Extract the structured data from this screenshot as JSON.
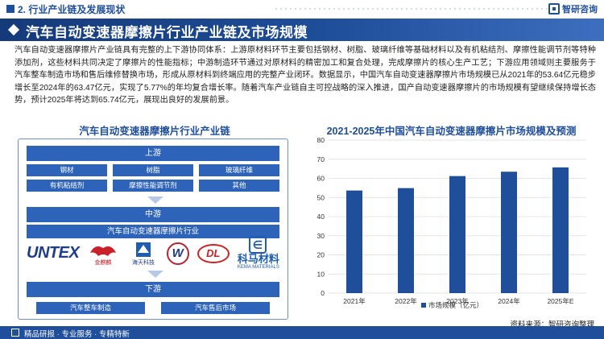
{
  "header": {
    "section": "2. 行业产业链及发展现状",
    "logo_text": "智研咨询"
  },
  "title": "汽车自动变速器摩擦片行业产业链及市场规模",
  "paragraph": "汽车自动变速器摩擦片产业链具有完整的上下游协同体系：上游原材料环节主要包括钢材、树脂、玻璃纤维等基础材料以及有机粘结剂、摩擦性能调节剂等特种添加剂，这些材料共同决定了摩擦片的性能指标；中游制造环节通过对原材料的精密加工和复合处理，完成摩擦片的核心生产工艺；下游应用领域则主要服务于汽车整车制造市场和售后维修替换市场，形成从原材料到终端应用的完整产业闭环。数据显示，中国汽车自动变速器摩擦片市场规模已从2021年的53.64亿元稳步增长至2024年的63.47亿元，实现了5.77%的年均复合增长率。随着汽车产业链自主可控战略的深入推进，国产自动变速器摩擦片的市场规模有望继续保持增长态势，预计2025年将达到65.74亿元，展现出良好的发展前景。",
  "chain": {
    "title": "汽车自动变速器摩擦片行业产业链",
    "upstream": {
      "label": "上游",
      "items": [
        "钢材",
        "树脂",
        "玻璃纤维",
        "有机粘结剂",
        "摩擦性能调节剂",
        "其他"
      ]
    },
    "midstream": {
      "label": "中游",
      "industry": "汽车自动变速器摩擦片行业",
      "logos": {
        "untex": "UNTEX",
        "golden_dragon": "金麒麟",
        "haitian": "海天科技",
        "w": "W",
        "dl": "DL",
        "kema_cn": "科马材料",
        "kema_en": "KEMA MATERIALS"
      }
    },
    "downstream": {
      "label": "下游",
      "items": [
        "汽车整车制造",
        "汽车售后市场"
      ]
    }
  },
  "chart_data": {
    "type": "bar",
    "title": "2021-2025年中国汽车自动变速器摩擦片市场规模及预测",
    "categories": [
      "2021年",
      "2022年",
      "2023年",
      "2024年",
      "2025年E"
    ],
    "series": [
      {
        "name": "市场规模（亿元）",
        "values": [
          53.64,
          54.9,
          61.2,
          63.47,
          65.74
        ]
      }
    ],
    "yticks": [
      0,
      10,
      20,
      30,
      40,
      50,
      60,
      70,
      80
    ],
    "ylim": [
      0,
      80
    ],
    "grid": true,
    "legend": "bottom",
    "bar_color": "#1f4e9a"
  },
  "footer": {
    "slogan": "精品研报 · 专业服务 · 专精特新",
    "source": "资料来源：智研咨询整理"
  }
}
